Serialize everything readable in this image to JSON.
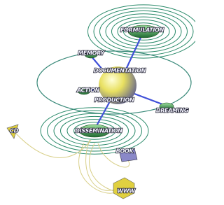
{
  "nodes": [
    {
      "label": "FORMULATION"
    },
    {
      "label": "MEMORY"
    },
    {
      "label": "DOCUMENTATION"
    },
    {
      "label": "ACTION"
    },
    {
      "label": "PRODUCTION"
    },
    {
      "label": "DREAMING"
    },
    {
      "label": "DISSEMINATION"
    },
    {
      "label": "CD"
    },
    {
      "label": "BOOK"
    },
    {
      "label": "WWW"
    }
  ]
}
